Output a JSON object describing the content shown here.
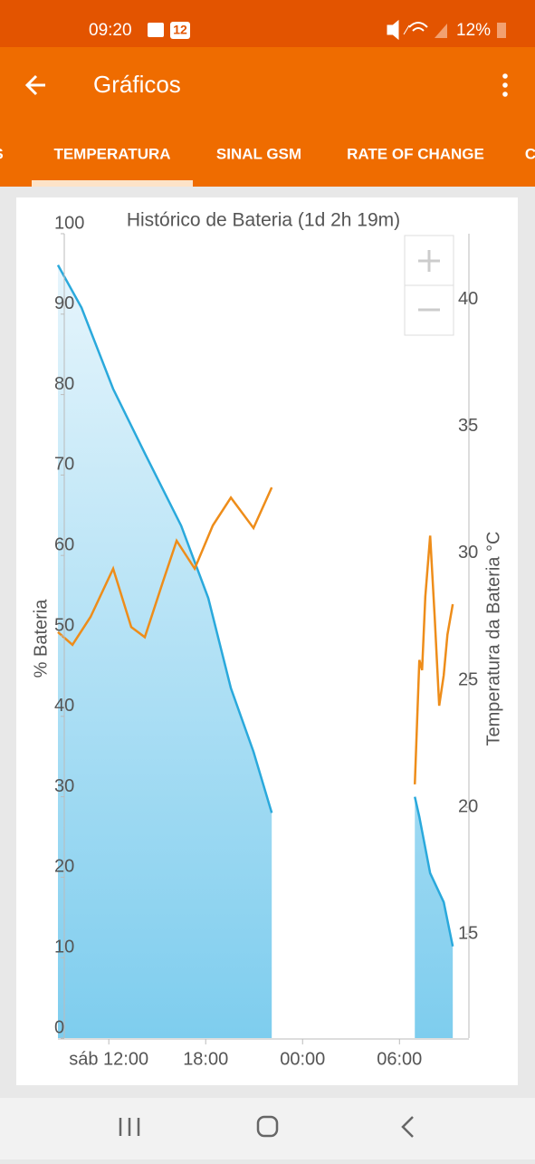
{
  "status_bar": {
    "time": "09:20",
    "notification_badge": "12",
    "battery": "12%"
  },
  "app_bar": {
    "title": "Gráficos"
  },
  "tabs": [
    "S",
    "TEMPERATURA",
    "SINAL GSM",
    "RATE OF CHANGE",
    "C"
  ],
  "selected_tab": 1,
  "chart_data": {
    "type": "line",
    "title": "Histórico de Bateria (1d 2h 19m)",
    "ylabel": "% Bateria",
    "y2label": "Temperatura da Bateria °C",
    "xlim": [
      8.85,
      34.3
    ],
    "xticks": [
      {
        "value": 12,
        "label": "sáb 12:00"
      },
      {
        "value": 18,
        "label": "18:00"
      },
      {
        "value": 24,
        "label": "00:00"
      },
      {
        "value": 30,
        "label": "06:00"
      }
    ],
    "ylim": [
      0,
      100
    ],
    "yticks": [
      0,
      10,
      20,
      30,
      40,
      50,
      60,
      70,
      80,
      90,
      100
    ],
    "y2lim": [
      10.9,
      42.6
    ],
    "y2ticks": [
      15,
      20,
      25,
      30,
      35,
      40
    ],
    "grid": false,
    "series": [
      {
        "color": "#2aa9dc",
        "area": true,
        "x": [
          8.85,
          10.31,
          12.27,
          14.23,
          16.48,
          18.16,
          19.56,
          20.96,
          22.09,
          null,
          30.95,
          31.23,
          31.9,
          32.74,
          33.3
        ],
        "values": [
          96.1,
          90.8,
          80.7,
          72.7,
          63.7,
          54.7,
          43.5,
          35.6,
          28.0,
          null,
          30.0,
          27.5,
          20.5,
          16.9,
          11.4
        ]
      },
      {
        "color": "#ee8d1a",
        "axis": "y2",
        "x": [
          8.85,
          9.75,
          10.87,
          12.27,
          13.39,
          14.23,
          15.36,
          16.2,
          17.32,
          18.44,
          19.56,
          20.96,
          22.09,
          null,
          30.95,
          31.23,
          31.4,
          31.6,
          31.9,
          32.18,
          32.46,
          32.74,
          32.97,
          33.3
        ],
        "values": [
          26.9,
          26.4,
          27.5,
          29.4,
          27.1,
          26.7,
          28.9,
          30.5,
          29.4,
          31.1,
          32.2,
          31.0,
          32.6,
          null,
          20.9,
          25.8,
          25.4,
          28.3,
          30.7,
          27.5,
          24.0,
          25.2,
          26.8,
          28.0
        ]
      }
    ]
  }
}
